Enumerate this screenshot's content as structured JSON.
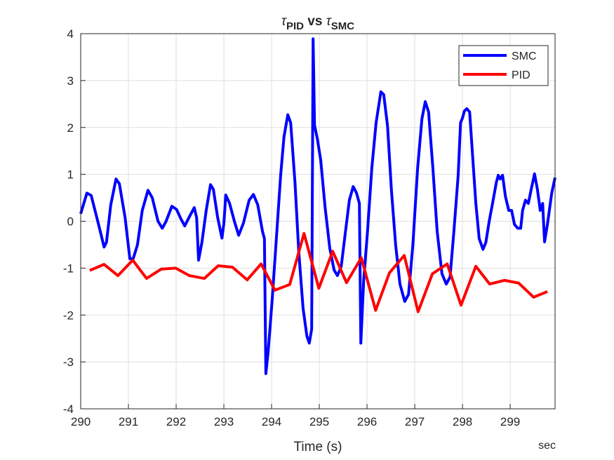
{
  "chart_data": {
    "type": "line",
    "title": [
      {
        "text": "τ",
        "sub": false
      },
      {
        "text": "PID",
        "sub": true
      },
      {
        "text": " vs ",
        "sub": false
      },
      {
        "text": "τ",
        "sub": false
      },
      {
        "text": "SMC",
        "sub": true
      }
    ],
    "xlabel": "Time (s)",
    "x_unit_label": "sec",
    "xlim": [
      290,
      299.94
    ],
    "ylim": [
      -4,
      4
    ],
    "xticks": [
      290,
      291,
      292,
      293,
      294,
      295,
      296,
      297,
      298,
      299
    ],
    "yticks": [
      -4,
      -3,
      -2,
      -1,
      0,
      1,
      2,
      3,
      4
    ],
    "grid": true,
    "legend": "upper right",
    "series": [
      {
        "name": "SMC",
        "color": "#0000ff",
        "x": [
          290.0,
          290.13,
          290.22,
          290.37,
          290.49,
          290.54,
          290.63,
          290.74,
          290.81,
          290.93,
          291.03,
          291.1,
          291.19,
          291.29,
          291.41,
          291.5,
          291.62,
          291.71,
          291.79,
          291.91,
          292.01,
          292.1,
          292.18,
          292.28,
          292.38,
          292.43,
          292.47,
          292.54,
          292.63,
          292.72,
          292.78,
          292.87,
          292.96,
          293.0,
          293.04,
          293.12,
          293.22,
          293.31,
          293.41,
          293.53,
          293.62,
          293.71,
          293.81,
          293.85,
          293.88,
          293.93,
          294.01,
          294.1,
          294.19,
          294.26,
          294.34,
          294.4,
          294.49,
          294.57,
          294.66,
          294.74,
          294.79,
          294.84,
          294.87,
          294.9,
          294.96,
          295.03,
          295.12,
          295.22,
          295.31,
          295.38,
          295.46,
          295.54,
          295.63,
          295.71,
          295.78,
          295.84,
          295.87,
          295.93,
          296.01,
          296.1,
          296.19,
          296.29,
          296.35,
          296.43,
          296.51,
          296.6,
          296.69,
          296.79,
          296.87,
          296.96,
          297.06,
          297.15,
          297.22,
          297.29,
          297.38,
          297.47,
          297.57,
          297.66,
          297.74,
          297.82,
          297.91,
          297.96,
          298.0,
          298.04,
          298.09,
          298.15,
          298.21,
          298.28,
          298.35,
          298.43,
          298.49,
          298.56,
          298.63,
          298.71,
          298.75,
          298.79,
          298.84,
          298.9,
          298.97,
          299.03,
          299.09,
          299.16,
          299.22,
          299.26,
          299.32,
          299.38,
          299.44,
          299.51,
          299.57,
          299.63,
          299.68,
          299.72,
          299.78,
          299.87,
          299.94
        ],
        "values": [
          0.16,
          0.6,
          0.55,
          -0.05,
          -0.55,
          -0.45,
          0.35,
          0.9,
          0.8,
          0.08,
          -0.8,
          -0.8,
          -0.5,
          0.23,
          0.66,
          0.5,
          0.0,
          -0.15,
          0.0,
          0.32,
          0.25,
          0.05,
          -0.1,
          0.1,
          0.29,
          0.07,
          -0.83,
          -0.45,
          0.23,
          0.78,
          0.68,
          0.08,
          -0.36,
          -0.05,
          0.56,
          0.38,
          0.0,
          -0.3,
          -0.04,
          0.45,
          0.57,
          0.35,
          -0.22,
          -0.37,
          -3.25,
          -2.76,
          -1.71,
          -0.37,
          0.98,
          1.8,
          2.27,
          2.1,
          0.83,
          -0.66,
          -1.86,
          -2.45,
          -2.6,
          -2.3,
          3.89,
          2.05,
          1.75,
          1.3,
          0.31,
          -0.58,
          -1.04,
          -1.16,
          -0.96,
          -0.29,
          0.45,
          0.74,
          0.6,
          0.38,
          -2.6,
          -1.26,
          -0.22,
          1.13,
          2.1,
          2.76,
          2.7,
          2.03,
          0.68,
          -0.51,
          -1.34,
          -1.71,
          -1.56,
          -0.51,
          1.13,
          2.18,
          2.55,
          2.33,
          1.13,
          -0.22,
          -1.12,
          -1.34,
          -1.19,
          -0.22,
          0.98,
          2.1,
          2.2,
          2.35,
          2.4,
          2.33,
          1.43,
          0.38,
          -0.37,
          -0.6,
          -0.45,
          0.0,
          0.38,
          0.83,
          0.98,
          0.9,
          0.98,
          0.53,
          0.23,
          0.23,
          -0.07,
          -0.15,
          -0.15,
          0.23,
          0.45,
          0.38,
          0.68,
          1.01,
          0.68,
          0.23,
          0.38,
          -0.44,
          -0.07,
          0.6,
          0.93
        ]
      },
      {
        "name": "PID",
        "color": "#ff0000",
        "x": [
          290.19,
          290.49,
          290.78,
          291.09,
          291.38,
          291.69,
          291.99,
          292.28,
          292.59,
          292.88,
          293.18,
          293.49,
          293.78,
          294.07,
          294.38,
          294.68,
          294.99,
          295.28,
          295.57,
          295.88,
          296.18,
          296.47,
          296.78,
          297.07,
          297.37,
          297.68,
          297.97,
          298.28,
          298.57,
          298.88,
          299.18,
          299.49,
          299.78
        ],
        "values": [
          -1.05,
          -0.92,
          -1.16,
          -0.83,
          -1.22,
          -1.02,
          -1.0,
          -1.16,
          -1.22,
          -0.95,
          -0.98,
          -1.25,
          -0.91,
          -1.47,
          -1.35,
          -0.26,
          -1.43,
          -0.64,
          -1.31,
          -0.78,
          -1.9,
          -1.1,
          -0.73,
          -1.93,
          -1.12,
          -0.91,
          -1.79,
          -0.96,
          -1.34,
          -1.26,
          -1.32,
          -1.62,
          -1.5
        ]
      }
    ]
  }
}
